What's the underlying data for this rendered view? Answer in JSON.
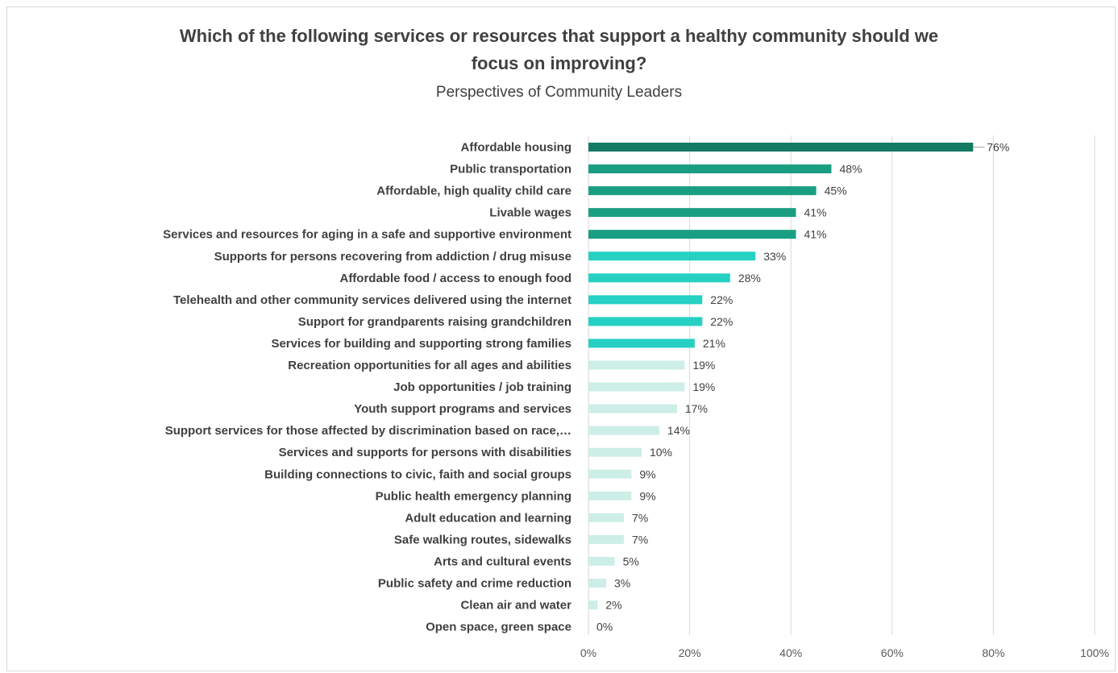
{
  "chart_data": {
    "type": "bar",
    "orientation": "horizontal",
    "title_lines": [
      "Which of the following services or resources that support a healthy community should we",
      "focus on improving?"
    ],
    "subtitle": "Perspectives of Community Leaders",
    "categories": [
      "Affordable housing",
      "Public transportation",
      "Affordable, high quality child care",
      "Livable wages",
      "Services and resources for aging in a safe and supportive environment",
      "Supports for persons recovering from addiction / drug misuse",
      "Affordable food / access to enough food",
      "Telehealth and other community services delivered using the internet",
      "Support for grandparents raising grandchildren",
      "Services for building and supporting strong families",
      "Recreation opportunities for all ages and abilities",
      "Job opportunities / job training",
      "Youth support programs and services",
      "Support services for those affected by discrimination based on race,…",
      "Services and supports for persons with disabilities",
      "Building connections to civic, faith and social groups",
      "Public health emergency planning",
      "Adult education and learning",
      "Safe walking routes, sidewalks",
      "Arts and cultural events",
      "Public safety and crime reduction",
      "Clean air and water",
      "Open space, green space"
    ],
    "values": [
      76,
      48,
      45,
      41,
      41,
      33,
      28,
      22,
      22,
      21,
      19,
      19,
      17,
      14,
      10,
      9,
      9,
      7,
      7,
      5,
      3,
      2,
      0
    ],
    "bar_values": [
      76,
      48,
      45,
      41,
      41,
      33,
      28,
      22.5,
      22.5,
      21,
      19,
      19,
      17.5,
      14,
      10.5,
      8.5,
      8.5,
      7,
      7,
      5.2,
      3.5,
      1.8,
      0
    ],
    "value_labels": [
      "76%",
      "48%",
      "45%",
      "41%",
      "41%",
      "33%",
      "28%",
      "22%",
      "22%",
      "21%",
      "19%",
      "19%",
      "17%",
      "14%",
      "10%",
      "9%",
      "9%",
      "7%",
      "7%",
      "5%",
      "3%",
      "2%",
      "0%"
    ],
    "bar_colors": [
      "#137a63",
      "#1a9e82",
      "#1a9e82",
      "#1a9e82",
      "#1a9e82",
      "#26d0c3",
      "#26d0c3",
      "#26d0c3",
      "#26d0c3",
      "#26d0c3",
      "#cdeee7",
      "#cdeee7",
      "#cdeee7",
      "#cdeee7",
      "#cdeee7",
      "#cdeee7",
      "#cdeee7",
      "#cdeee7",
      "#cdeee7",
      "#cdeee7",
      "#cdeee7",
      "#cdeee7",
      "#cdeee7"
    ],
    "x_ticks": [
      0,
      20,
      40,
      60,
      80,
      100
    ],
    "x_tick_labels": [
      "0%",
      "20%",
      "40%",
      "60%",
      "80%",
      "100%"
    ],
    "xlim": [
      0,
      100
    ],
    "grid": true,
    "gridline_color": "#d9d9d9"
  }
}
